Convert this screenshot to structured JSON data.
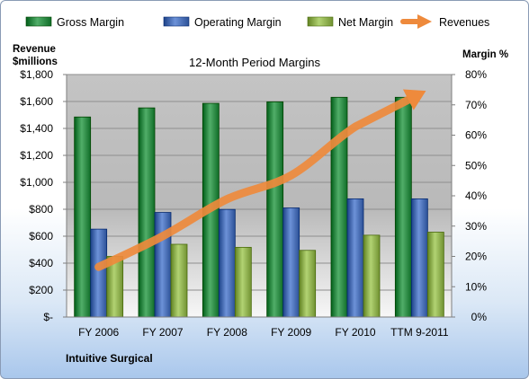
{
  "chart_data": {
    "type": "bar",
    "title": "12-Month Period Margins",
    "left_axis_label": [
      "Revenue",
      "$millions"
    ],
    "right_axis_label": "Margin %",
    "categories": [
      "FY 2006",
      "FY 2007",
      "FY 2008",
      "FY 2009",
      "FY 2010",
      "TTM 9-2011"
    ],
    "left_ylim": [
      0,
      1800
    ],
    "left_ticks": [
      "$-",
      "$200",
      "$400",
      "$600",
      "$800",
      "$1,000",
      "$1,200",
      "$1,400",
      "$1,600",
      "$1,800"
    ],
    "right_ylim": [
      0,
      80
    ],
    "right_ticks": [
      "0%",
      "10%",
      "20%",
      "30%",
      "40%",
      "50%",
      "60%",
      "70%",
      "80%"
    ],
    "series": [
      {
        "name": "Gross Margin",
        "type": "bar",
        "axis": "right",
        "unit": "%",
        "color": "#2e8b46",
        "values": [
          66,
          69,
          70.5,
          71,
          72.5,
          72.5
        ]
      },
      {
        "name": "Operating Margin",
        "type": "bar",
        "axis": "right",
        "unit": "%",
        "color": "#4a6fb5",
        "values": [
          29,
          34.5,
          35.5,
          36,
          39,
          39
        ]
      },
      {
        "name": "Net Margin",
        "type": "bar",
        "axis": "right",
        "unit": "%",
        "color": "#8fb050",
        "values": [
          20,
          24,
          23,
          22,
          27,
          28
        ]
      },
      {
        "name": "Revenues",
        "type": "line",
        "axis": "left",
        "unit": "$millions",
        "color": "#ee8a3c",
        "values": [
          372,
          601,
          875,
          1052,
          1413,
          1655
        ]
      }
    ],
    "grid": true,
    "legend_position": "top",
    "footer": "Intuitive Surgical"
  }
}
